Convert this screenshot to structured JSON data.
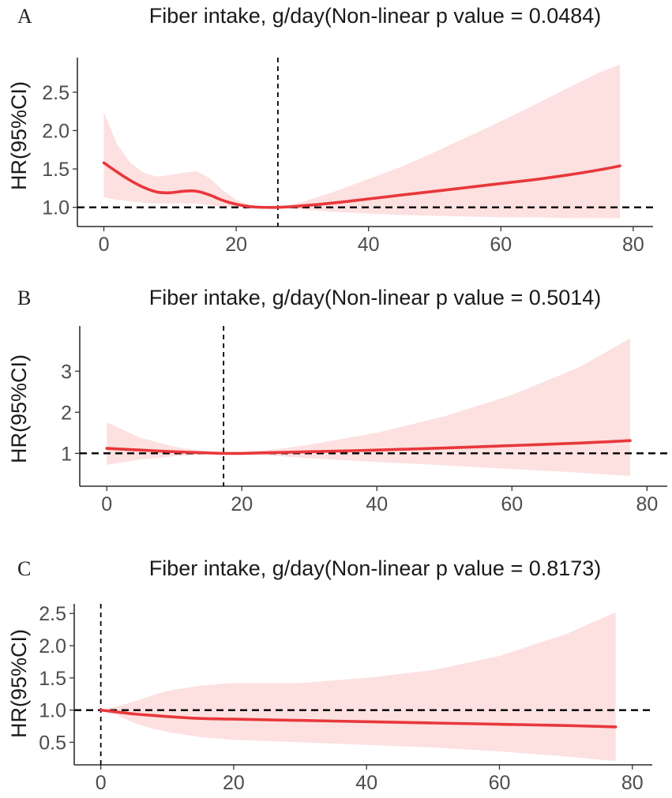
{
  "figure": {
    "colors": {
      "curve": "#e8373b",
      "ci_band": "#fde0e0",
      "reference": "#000000"
    }
  },
  "chart_data": [
    {
      "type": "line",
      "panel": "A",
      "title": "Fiber intake, g/day(Non-linear p value = 0.0484)",
      "xlabel": "",
      "ylabel": "HR(95%CI)",
      "xlim": [
        -4,
        83
      ],
      "ylim": [
        0.75,
        2.95
      ],
      "xticks": [
        0,
        20,
        40,
        60,
        80
      ],
      "yticks": [
        1.0,
        1.5,
        2.0,
        2.5
      ],
      "ytick_labels": [
        "1.0",
        "1.5",
        "2.0",
        "2.5"
      ],
      "reference_hr": 1.0,
      "reference_x": 26.3,
      "series": [
        {
          "name": "HR",
          "x": [
            0,
            2,
            4,
            6,
            8,
            10,
            12,
            14,
            16,
            18,
            20,
            22,
            24,
            26.3,
            30,
            35,
            40,
            45,
            50,
            55,
            60,
            65,
            70,
            75,
            78
          ],
          "y": [
            1.58,
            1.46,
            1.35,
            1.26,
            1.2,
            1.19,
            1.21,
            1.21,
            1.16,
            1.09,
            1.04,
            1.01,
            1.0,
            1.0,
            1.02,
            1.06,
            1.11,
            1.16,
            1.21,
            1.26,
            1.31,
            1.36,
            1.42,
            1.49,
            1.54
          ],
          "lower": [
            1.13,
            1.1,
            1.08,
            1.06,
            1.05,
            1.05,
            1.05,
            1.05,
            1.03,
            1.01,
            1.0,
            0.99,
            0.99,
            1.0,
            0.97,
            0.94,
            0.92,
            0.9,
            0.89,
            0.88,
            0.87,
            0.87,
            0.86,
            0.86,
            0.86
          ],
          "upper": [
            2.24,
            1.82,
            1.58,
            1.45,
            1.4,
            1.42,
            1.45,
            1.47,
            1.38,
            1.22,
            1.1,
            1.03,
            1.01,
            1.0,
            1.07,
            1.21,
            1.37,
            1.53,
            1.72,
            1.92,
            2.12,
            2.33,
            2.55,
            2.76,
            2.86
          ]
        }
      ]
    },
    {
      "type": "line",
      "panel": "B",
      "title": "Fiber intake, g/day(Non-linear p value = 0.5014)",
      "xlabel": "",
      "ylabel": "HR(95%CI)",
      "xlim": [
        -4,
        83
      ],
      "ylim": [
        0.2,
        4.1
      ],
      "xticks": [
        0,
        20,
        40,
        60,
        80
      ],
      "yticks": [
        1,
        2,
        3
      ],
      "ytick_labels": [
        "1",
        "2",
        "3"
      ],
      "reference_hr": 1.0,
      "reference_x": 17.3,
      "series": [
        {
          "name": "HR",
          "x": [
            0,
            5,
            10,
            15,
            17.3,
            20,
            25,
            30,
            40,
            50,
            60,
            70,
            77.5
          ],
          "y": [
            1.12,
            1.08,
            1.04,
            1.01,
            1.0,
            1.0,
            1.02,
            1.04,
            1.08,
            1.13,
            1.19,
            1.25,
            1.31
          ],
          "lower": [
            0.72,
            0.85,
            0.93,
            0.98,
            1.0,
            0.98,
            0.94,
            0.88,
            0.79,
            0.71,
            0.62,
            0.53,
            0.45
          ],
          "upper": [
            1.75,
            1.38,
            1.16,
            1.04,
            1.0,
            1.03,
            1.1,
            1.21,
            1.5,
            1.9,
            2.42,
            3.1,
            3.8
          ]
        }
      ]
    },
    {
      "type": "line",
      "panel": "C",
      "title": "Fiber intake, g/day(Non-linear p value = 0.8173)",
      "xlabel": "",
      "ylabel": "HR(95%CI)",
      "xlim": [
        -4,
        83
      ],
      "ylim": [
        0.15,
        2.65
      ],
      "xticks": [
        0,
        20,
        40,
        60,
        80
      ],
      "yticks": [
        0.5,
        1.0,
        1.5,
        2.0,
        2.5
      ],
      "ytick_labels": [
        "0.5",
        "1.0",
        "1.5",
        "2.0",
        "2.5"
      ],
      "reference_hr": 1.0,
      "reference_x": 0,
      "series": [
        {
          "name": "HR",
          "x": [
            0,
            2.5,
            5,
            7.5,
            10,
            15,
            20,
            30,
            40,
            50,
            60,
            70,
            77.5
          ],
          "y": [
            1.0,
            0.97,
            0.94,
            0.92,
            0.9,
            0.87,
            0.86,
            0.84,
            0.82,
            0.8,
            0.78,
            0.76,
            0.74
          ],
          "lower": [
            1.0,
            0.92,
            0.8,
            0.72,
            0.66,
            0.58,
            0.54,
            0.5,
            0.46,
            0.42,
            0.36,
            0.28,
            0.21
          ],
          "upper": [
            1.0,
            1.06,
            1.13,
            1.22,
            1.3,
            1.38,
            1.42,
            1.42,
            1.5,
            1.62,
            1.84,
            2.18,
            2.52
          ]
        }
      ]
    }
  ]
}
